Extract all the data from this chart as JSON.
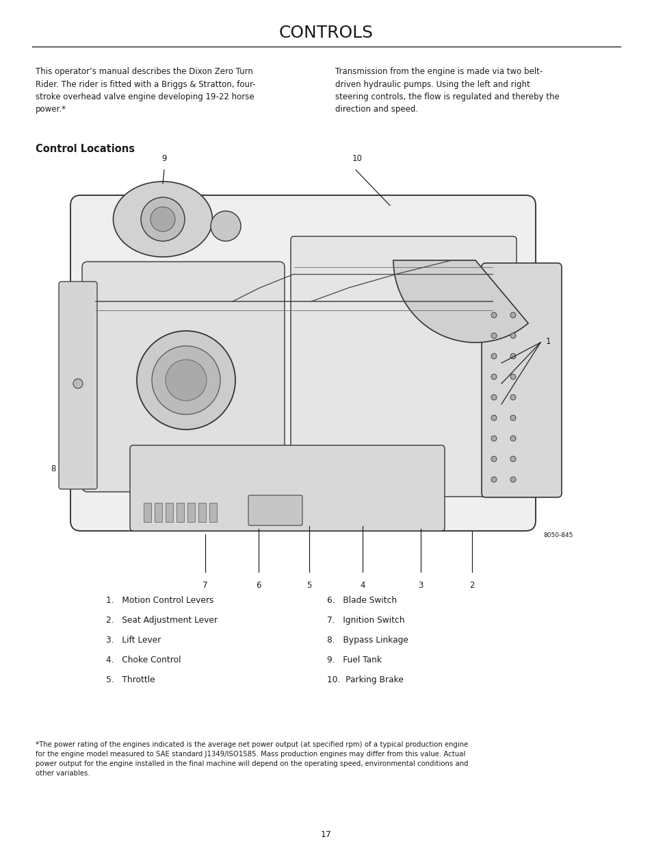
{
  "title": "CONTROLS",
  "bg_color": "#ffffff",
  "text_color": "#1a1a1a",
  "title_fontsize": 18,
  "body_fontsize": 8.5,
  "subtitle_fontsize": 10.5,
  "para1_left": "This operator’s manual describes the Dixon Zero Turn\nRider. The rider is fitted with a Briggs & Stratton, four-\nstroke overhead valve engine developing 19-22 horse\npower.*",
  "para1_right": "Transmission from the engine is made via two belt-\ndriven hydraulic pumps. Using the left and right\nsteering controls, the flow is regulated and thereby the\ndirection and speed.",
  "section_title": "Control Locations",
  "list_left": [
    "1.   Motion Control Levers",
    "2.   Seat Adjustment Lever",
    "3.   Lift Lever",
    "4.   Choke Control",
    "5.   Throttle"
  ],
  "list_right": [
    "6.   Blade Switch",
    "7.   Ignition Switch",
    "8.   Bypass Linkage",
    "9.   Fuel Tank",
    "10.  Parking Brake"
  ],
  "footnote": "*The power rating of the engines indicated is the average net power output (at specified rpm) of a typical production engine\nfor the engine model measured to SAE standard J1349/ISO1585. Mass production engines may differ from this value. Actual\npower output for the engine installed in the final machine will depend on the operating speed, environmental conditions and\nother variables.",
  "page_number": "17",
  "diagram_label": "8050-845"
}
